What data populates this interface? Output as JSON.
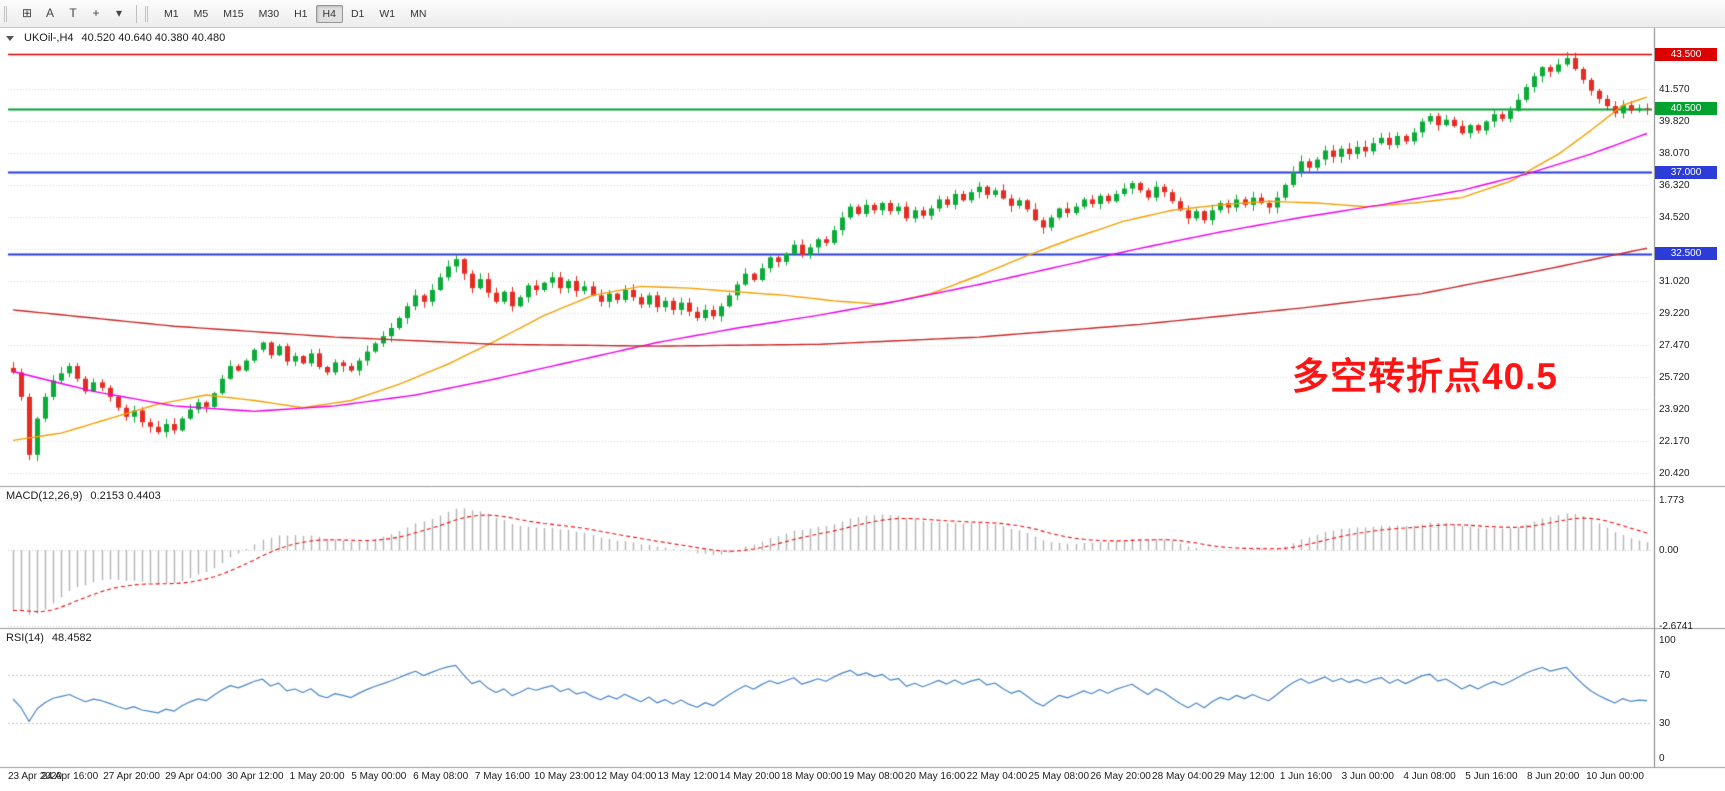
{
  "toolbar": {
    "tools": [
      {
        "name": "chart-grid",
        "glyph": "⊞"
      },
      {
        "name": "cursor-tool",
        "glyph": "A"
      },
      {
        "name": "text-tool",
        "glyph": "T"
      },
      {
        "name": "crosshair-tool",
        "glyph": "+"
      },
      {
        "name": "objects-menu",
        "glyph": "▾"
      }
    ],
    "timeframes": [
      "M1",
      "M5",
      "M15",
      "M30",
      "H1",
      "H4",
      "D1",
      "W1",
      "MN"
    ],
    "active_timeframe": "H4"
  },
  "chart": {
    "symbol": "UKOil-,H4",
    "ohlc": "40.520 40.640 40.380 40.480"
  },
  "annotation": {
    "text": "多空转折点40.5",
    "color": "#fe1414"
  },
  "price_scale": {
    "labels": [
      "41.570",
      "39.820",
      "38.070",
      "36.320",
      "34.520",
      "31.020",
      "29.220",
      "27.470",
      "25.720",
      "23.920",
      "22.170",
      "20.420"
    ],
    "badges": [
      {
        "text": "43.500",
        "color": "#dd0000"
      },
      {
        "text": "40.500",
        "color": "#00a32e"
      },
      {
        "text": "37.000",
        "color": "#2b3cd8"
      },
      {
        "text": "32.500",
        "color": "#2b3cd8"
      }
    ]
  },
  "macd": {
    "title": "MACD(12,26,9)",
    "values": "0.2153 0.4403",
    "scale": [
      "1.773",
      "0.00",
      "-2.6741"
    ]
  },
  "rsi": {
    "title": "RSI(14)",
    "value": "48.4582",
    "scale": [
      "100",
      "70",
      "30",
      "0"
    ]
  },
  "time_axis": [
    "23 Apr 2020",
    "24 Apr 16:00",
    "27 Apr 20:00",
    "29 Apr 04:00",
    "30 Apr 12:00",
    "1 May 20:00",
    "5 May 00:00",
    "6 May 08:00",
    "7 May 16:00",
    "10 May 23:00",
    "12 May 04:00",
    "13 May 12:00",
    "14 May 20:00",
    "18 May 00:00",
    "19 May 08:00",
    "20 May 16:00",
    "22 May 04:00",
    "25 May 08:00",
    "26 May 20:00",
    "28 May 04:00",
    "29 May 12:00",
    "1 Jun 16:00",
    "3 Jun 00:00",
    "4 Jun 08:00",
    "5 Jun 16:00",
    "8 Jun 20:00",
    "10 Jun 00:00"
  ],
  "chart_data": {
    "type": "candlestick",
    "symbol": "UKOil-",
    "timeframe": "H4",
    "title": "UKOil- H4 with MACD(12,26,9) and RSI(14)",
    "last_quote": {
      "open": 40.52,
      "high": 40.64,
      "low": 40.38,
      "close": 40.48
    },
    "y_range": [
      19.9,
      44.3
    ],
    "first_open": 26.2,
    "closes": [
      25.95,
      24.6,
      21.4,
      23.4,
      24.6,
      25.5,
      25.9,
      26.3,
      25.6,
      24.9,
      25.4,
      25.1,
      24.6,
      24.0,
      23.5,
      23.85,
      23.2,
      22.95,
      22.65,
      23.1,
      22.75,
      23.4,
      23.9,
      24.3,
      24.05,
      24.8,
      25.6,
      26.3,
      26.05,
      26.6,
      27.2,
      27.6,
      26.9,
      27.4,
      26.55,
      26.85,
      26.45,
      27.0,
      26.25,
      25.95,
      26.5,
      26.3,
      26.05,
      26.6,
      27.1,
      27.55,
      27.95,
      28.4,
      28.95,
      29.6,
      30.2,
      29.85,
      30.5,
      31.2,
      31.8,
      32.2,
      31.4,
      30.6,
      31.1,
      30.35,
      29.85,
      30.4,
      29.6,
      30.1,
      30.75,
      30.5,
      30.9,
      31.2,
      30.6,
      31.0,
      30.45,
      30.7,
      30.2,
      29.85,
      30.3,
      29.95,
      30.5,
      30.1,
      29.7,
      30.2,
      29.55,
      29.9,
      29.4,
      29.8,
      29.3,
      28.95,
      29.4,
      29.05,
      29.6,
      30.2,
      30.8,
      31.4,
      31.05,
      31.7,
      32.3,
      32.05,
      32.5,
      33.0,
      32.45,
      32.85,
      33.3,
      33.1,
      33.8,
      34.5,
      35.1,
      34.7,
      35.2,
      34.9,
      35.3,
      34.85,
      35.1,
      34.45,
      34.9,
      34.6,
      35.0,
      35.5,
      35.2,
      35.8,
      35.45,
      35.9,
      36.2,
      35.75,
      36.0,
      35.55,
      35.15,
      35.45,
      34.95,
      34.35,
      33.95,
      34.5,
      35.0,
      34.75,
      35.1,
      35.5,
      35.25,
      35.7,
      35.4,
      35.8,
      36.1,
      36.4,
      36.0,
      35.6,
      36.2,
      35.9,
      35.4,
      34.9,
      34.45,
      34.85,
      34.35,
      34.9,
      35.3,
      35.05,
      35.5,
      35.2,
      35.6,
      35.3,
      35.05,
      35.6,
      36.3,
      37.0,
      37.6,
      37.25,
      37.7,
      38.2,
      37.85,
      38.3,
      38.0,
      38.4,
      38.15,
      38.6,
      38.9,
      38.5,
      39.0,
      38.7,
      39.2,
      39.8,
      40.1,
      39.6,
      39.9,
      39.55,
      39.15,
      39.6,
      39.3,
      39.8,
      40.2,
      39.95,
      40.4,
      41.0,
      41.7,
      42.3,
      42.8,
      42.55,
      42.95,
      43.3,
      42.7,
      42.1,
      41.5,
      41.05,
      40.65,
      40.25,
      40.7,
      40.4,
      40.52,
      40.48
    ],
    "gridline_prices": [
      41.57,
      39.82,
      38.07,
      36.32,
      34.52,
      32.77,
      31.02,
      29.22,
      27.47,
      25.72,
      23.92,
      22.17,
      20.42
    ],
    "levels": [
      {
        "name": "resistance-line",
        "price": 43.5,
        "color": "#dd0000",
        "width": 1.4
      },
      {
        "name": "pivot-line",
        "price": 40.5,
        "color": "#00a32e",
        "width": 2
      },
      {
        "name": "support-line-1",
        "price": 37.0,
        "color": "#2b3cd8",
        "width": 2
      },
      {
        "name": "support-line-2",
        "price": 32.5,
        "color": "#2b3cd8",
        "width": 2
      }
    ],
    "moving_averages": [
      {
        "name": "ma-fast",
        "color": "#f5a000",
        "points": [
          [
            0,
            22.2
          ],
          [
            6,
            22.6
          ],
          [
            12,
            23.4
          ],
          [
            18,
            24.2
          ],
          [
            24,
            24.7
          ],
          [
            30,
            24.4
          ],
          [
            36,
            24.0
          ],
          [
            42,
            24.4
          ],
          [
            48,
            25.3
          ],
          [
            54,
            26.4
          ],
          [
            60,
            27.7
          ],
          [
            66,
            29.1
          ],
          [
            72,
            30.2
          ],
          [
            78,
            30.7
          ],
          [
            84,
            30.6
          ],
          [
            90,
            30.4
          ],
          [
            96,
            30.2
          ],
          [
            102,
            29.9
          ],
          [
            108,
            29.7
          ],
          [
            114,
            30.3
          ],
          [
            120,
            31.3
          ],
          [
            126,
            32.4
          ],
          [
            132,
            33.4
          ],
          [
            138,
            34.3
          ],
          [
            144,
            34.9
          ],
          [
            150,
            35.2
          ],
          [
            156,
            35.4
          ],
          [
            162,
            35.3
          ],
          [
            168,
            35.1
          ],
          [
            174,
            35.3
          ],
          [
            180,
            35.6
          ],
          [
            186,
            36.5
          ],
          [
            192,
            38.0
          ],
          [
            196,
            39.3
          ],
          [
            200,
            40.7
          ],
          [
            204,
            41.3
          ]
        ]
      },
      {
        "name": "ma-mid",
        "color": "#ee00ee",
        "points": [
          [
            0,
            26.0
          ],
          [
            10,
            24.9
          ],
          [
            20,
            24.1
          ],
          [
            30,
            23.8
          ],
          [
            40,
            24.1
          ],
          [
            50,
            24.7
          ],
          [
            60,
            25.6
          ],
          [
            70,
            26.6
          ],
          [
            80,
            27.6
          ],
          [
            90,
            28.4
          ],
          [
            100,
            29.1
          ],
          [
            110,
            29.9
          ],
          [
            120,
            30.8
          ],
          [
            130,
            31.8
          ],
          [
            140,
            32.8
          ],
          [
            150,
            33.7
          ],
          [
            160,
            34.5
          ],
          [
            170,
            35.2
          ],
          [
            180,
            36.0
          ],
          [
            188,
            36.9
          ],
          [
            196,
            38.0
          ],
          [
            204,
            39.3
          ]
        ]
      },
      {
        "name": "ma-slow",
        "color": "#c82828",
        "points": [
          [
            0,
            29.4
          ],
          [
            20,
            28.5
          ],
          [
            40,
            27.9
          ],
          [
            60,
            27.5
          ],
          [
            80,
            27.4
          ],
          [
            100,
            27.5
          ],
          [
            120,
            27.9
          ],
          [
            140,
            28.6
          ],
          [
            160,
            29.5
          ],
          [
            175,
            30.3
          ],
          [
            190,
            31.6
          ],
          [
            204,
            32.9
          ]
        ]
      }
    ],
    "indicators": {
      "macd": {
        "fast": 12,
        "slow": 26,
        "signal": 9,
        "histogram_color": "#b4b4b4",
        "signal_color": "#ee1111",
        "scale_max": 1.773,
        "scale_min": -2.6741
      },
      "rsi": {
        "period": 14,
        "color": "#4a86c8",
        "levels": [
          70,
          30
        ],
        "scale_max": 100,
        "scale_min": 0
      }
    },
    "candle_colors": {
      "bull": "#0bab38",
      "bear": "#e62b22"
    }
  }
}
